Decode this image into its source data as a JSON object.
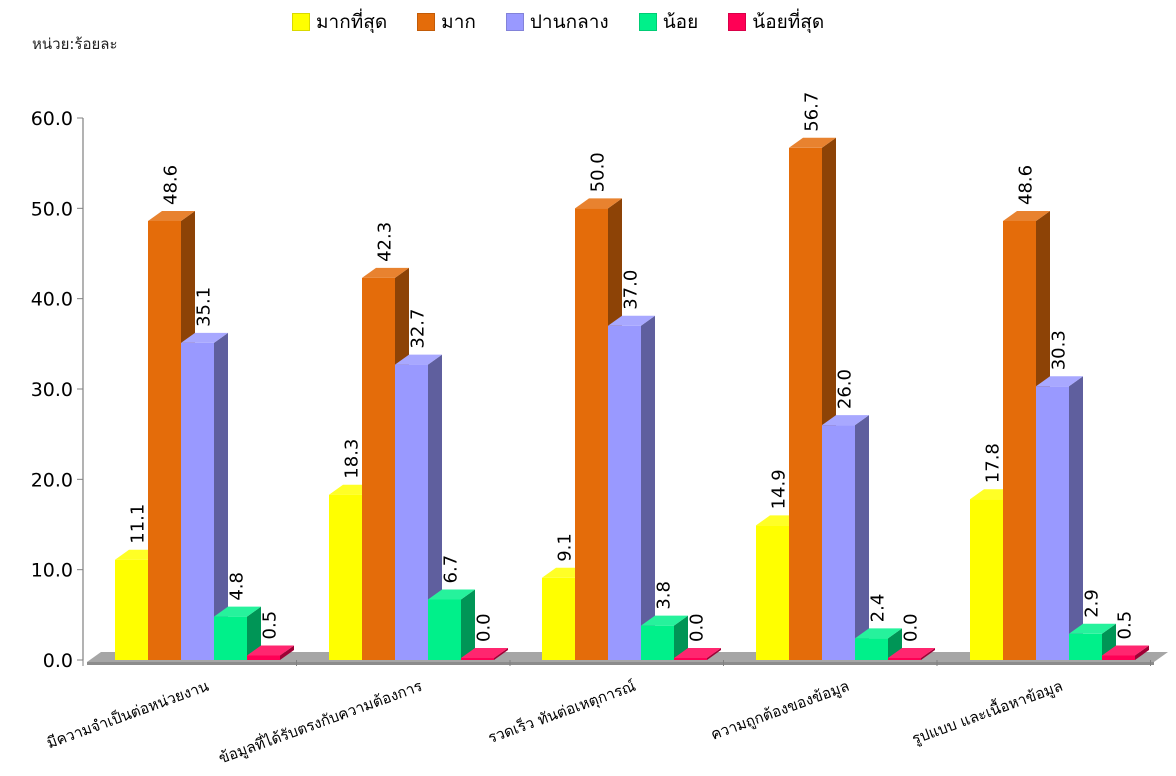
{
  "unit_label": "หน่วย:ร้อยละ",
  "legend": [
    {
      "label": "มากที่สุด",
      "color": "#ffff00"
    },
    {
      "label": "มาก",
      "color": "#e46c0a"
    },
    {
      "label": "ปานกลาง",
      "color": "#9999ff"
    },
    {
      "label": "น้อย",
      "color": "#00f08a"
    },
    {
      "label": "น้อยที่สุด",
      "color": "#ff0055"
    }
  ],
  "chart_data": {
    "type": "bar",
    "title": "",
    "xlabel": "",
    "ylabel": "",
    "ylim": [
      0,
      60
    ],
    "yticks": [
      "0.0",
      "10.0",
      "20.0",
      "30.0",
      "40.0",
      "50.0",
      "60.0"
    ],
    "legend_position": "top",
    "categories": [
      "มีความจำเป็นต่อหน่วยงาน",
      "ข้อมูลที่ได้รับตรงกับความต้องการ",
      "รวดเร็ว ทันต่อเหตุการณ์",
      "ความถูกต้องของข้อมูล",
      "รูปแบบ และเนื้อหาข้อมูล"
    ],
    "series": [
      {
        "name": "มากที่สุด",
        "color": "#ffff00",
        "values": [
          11.1,
          18.3,
          9.1,
          14.9,
          17.8
        ]
      },
      {
        "name": "มาก",
        "color": "#e46c0a",
        "values": [
          48.6,
          42.3,
          50.0,
          56.7,
          48.6
        ]
      },
      {
        "name": "ปานกลาง",
        "color": "#9999ff",
        "values": [
          35.1,
          32.7,
          37.0,
          26.0,
          30.3
        ]
      },
      {
        "name": "น้อย",
        "color": "#00f08a",
        "values": [
          4.8,
          6.7,
          3.8,
          2.4,
          2.9
        ]
      },
      {
        "name": "น้อยที่สุด",
        "color": "#ff0055",
        "values": [
          0.5,
          0.0,
          0.0,
          0.0,
          0.5
        ]
      }
    ]
  }
}
